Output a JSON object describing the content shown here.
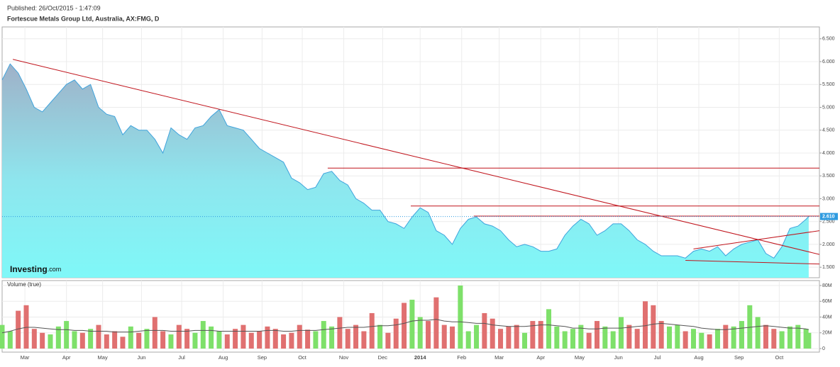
{
  "published": "Published: 26/Oct/2015 - 1:47:09",
  "chart_data": {
    "type": "area",
    "title": "Fortescue Metals Group Ltd, Australia, AX:FMG, D",
    "logo": "Investing",
    "logo_suffix": ".com",
    "line_color": "#3fa3dc",
    "grid": true,
    "xlim": [
      0,
      610
    ],
    "xticks": [
      {
        "value": 17,
        "label": "Mar"
      },
      {
        "value": 48,
        "label": "Apr"
      },
      {
        "value": 75,
        "label": "May"
      },
      {
        "value": 104,
        "label": "Jun"
      },
      {
        "value": 134,
        "label": "Jul"
      },
      {
        "value": 165,
        "label": "Aug"
      },
      {
        "value": 194,
        "label": "Sep"
      },
      {
        "value": 224,
        "label": "Oct"
      },
      {
        "value": 255,
        "label": "Nov"
      },
      {
        "value": 284,
        "label": "Dec"
      },
      {
        "value": 312,
        "label": "2014"
      },
      {
        "value": 343,
        "label": "Feb"
      },
      {
        "value": 371,
        "label": "Mar"
      },
      {
        "value": 402,
        "label": "Apr"
      },
      {
        "value": 431,
        "label": "May"
      },
      {
        "value": 460,
        "label": "Jun"
      },
      {
        "value": 489,
        "label": "Jul"
      },
      {
        "value": 520,
        "label": "Aug"
      },
      {
        "value": 550,
        "label": "Sep"
      },
      {
        "value": 580,
        "label": "Oct"
      }
    ],
    "ylim": [
      1.27,
      6.76
    ],
    "yticks": [
      {
        "value": 1.5,
        "label": "1.500"
      },
      {
        "value": 2,
        "label": "2.000"
      },
      {
        "value": 2.5,
        "label": "2.500"
      },
      {
        "value": 3,
        "label": "3.000"
      },
      {
        "value": 3.5,
        "label": "3.500"
      },
      {
        "value": 4,
        "label": "4.000"
      },
      {
        "value": 4.5,
        "label": "4.500"
      },
      {
        "value": 5,
        "label": "5.000"
      },
      {
        "value": 5.5,
        "label": "5.500"
      },
      {
        "value": 6,
        "label": "6.000"
      },
      {
        "value": 6.5,
        "label": "6.500"
      }
    ],
    "x": [
      0,
      6,
      12,
      18,
      24,
      30,
      36,
      42,
      48,
      54,
      60,
      66,
      72,
      78,
      84,
      90,
      96,
      102,
      108,
      114,
      120,
      126,
      132,
      138,
      144,
      150,
      156,
      162,
      168,
      174,
      180,
      186,
      192,
      198,
      204,
      210,
      216,
      222,
      228,
      234,
      240,
      246,
      252,
      258,
      264,
      270,
      276,
      282,
      288,
      294,
      300,
      306,
      312,
      318,
      324,
      330,
      336,
      342,
      348,
      354,
      360,
      366,
      372,
      378,
      384,
      390,
      396,
      402,
      408,
      414,
      420,
      426,
      432,
      438,
      444,
      450,
      456,
      462,
      468,
      474,
      480,
      486,
      492,
      498,
      504,
      510,
      516,
      522,
      528,
      534,
      540,
      546,
      552,
      558,
      564,
      570,
      576,
      582,
      588,
      594,
      600,
      602
    ],
    "values": [
      5.6,
      5.95,
      5.75,
      5.4,
      5.0,
      4.9,
      5.1,
      5.3,
      5.5,
      5.6,
      5.4,
      5.5,
      5.0,
      4.85,
      4.8,
      4.4,
      4.6,
      4.5,
      4.5,
      4.3,
      4.0,
      4.55,
      4.4,
      4.3,
      4.55,
      4.6,
      4.8,
      4.95,
      4.6,
      4.55,
      4.5,
      4.3,
      4.1,
      4.0,
      3.9,
      3.8,
      3.45,
      3.35,
      3.2,
      3.25,
      3.55,
      3.6,
      3.4,
      3.3,
      3.0,
      2.9,
      2.75,
      2.75,
      2.5,
      2.45,
      2.35,
      2.6,
      2.8,
      2.7,
      2.3,
      2.2,
      2.0,
      2.35,
      2.55,
      2.6,
      2.45,
      2.4,
      2.3,
      2.1,
      1.95,
      2.0,
      1.95,
      1.85,
      1.85,
      1.9,
      2.2,
      2.4,
      2.55,
      2.45,
      2.2,
      2.3,
      2.45,
      2.45,
      2.3,
      2.1,
      2.0,
      1.85,
      1.75,
      1.75,
      1.75,
      1.7,
      1.85,
      1.9,
      1.85,
      1.95,
      1.75,
      1.9,
      2.0,
      2.05,
      2.1,
      1.8,
      1.7,
      1.95,
      2.35,
      2.4,
      2.55,
      2.61
    ],
    "last_price": {
      "value": 2.61,
      "label": "2.610"
    },
    "last_price_color": "#2f9be0",
    "trendline_color": "#c0141c",
    "trendlines": [
      {
        "x": [
          8,
          610
        ],
        "y": [
          6.05,
          1.78
        ]
      },
      {
        "x": [
          243,
          610
        ],
        "y": [
          3.67,
          3.67
        ]
      },
      {
        "x": [
          305,
          610
        ],
        "y": [
          2.84,
          2.84
        ]
      },
      {
        "x": [
          352,
          610
        ],
        "y": [
          2.62,
          2.62
        ]
      },
      {
        "x": [
          510,
          610
        ],
        "y": [
          1.65,
          1.57
        ]
      },
      {
        "x": [
          516,
          610
        ],
        "y": [
          1.9,
          2.3
        ]
      }
    ],
    "volume": {
      "label": "Volume (true)",
      "up_color": "#7ee06a",
      "down_color": "#e07070",
      "ma_color": "#555555",
      "ylim": [
        -4.5,
        86.3
      ],
      "yticks": [
        0,
        {
          "value": 20,
          "label": "20M"
        },
        {
          "value": 40,
          "label": "40M"
        },
        {
          "value": 60,
          "label": "60M"
        },
        {
          "value": 80,
          "label": "80M"
        }
      ],
      "values": [
        30,
        22,
        48,
        55,
        25,
        20,
        18,
        28,
        35,
        22,
        20,
        25,
        30,
        18,
        22,
        15,
        28,
        20,
        25,
        40,
        22,
        18,
        30,
        25,
        20,
        35,
        28,
        22,
        18,
        25,
        30,
        20,
        22,
        28,
        25,
        18,
        20,
        30,
        24,
        22,
        35,
        28,
        40,
        25,
        30,
        22,
        45,
        30,
        20,
        38,
        58,
        62,
        40,
        35,
        65,
        30,
        28,
        80,
        22,
        30,
        45,
        38,
        25,
        28,
        30,
        20,
        35,
        35,
        50,
        28,
        22,
        25,
        30,
        20,
        35,
        28,
        22,
        40,
        30,
        25,
        60,
        55,
        35,
        28,
        30,
        22,
        25,
        20,
        18,
        25,
        30,
        28,
        35,
        55,
        40,
        30,
        25,
        22,
        28,
        30,
        25,
        20
      ],
      "ma_values": [
        20,
        22,
        25,
        27,
        27,
        26,
        25,
        24,
        24,
        23,
        23,
        22,
        22,
        22,
        21,
        21,
        21,
        22,
        23,
        23,
        23,
        22,
        22,
        22,
        23,
        23,
        23,
        22,
        22,
        22,
        22,
        22,
        22,
        23,
        23,
        22,
        22,
        23,
        23,
        23,
        24,
        25,
        26,
        27,
        27,
        27,
        28,
        29,
        29,
        30,
        32,
        35,
        36,
        36,
        37,
        35,
        34,
        34,
        33,
        32,
        32,
        30,
        29,
        28,
        28,
        28,
        29,
        30,
        30,
        29,
        28,
        26,
        26,
        25,
        25,
        26,
        26,
        26,
        27,
        28,
        29,
        31,
        32,
        31,
        30,
        29,
        28,
        26,
        25,
        24,
        24,
        25,
        26,
        27,
        28,
        29,
        28,
        27,
        26,
        26,
        25,
        24
      ]
    }
  }
}
